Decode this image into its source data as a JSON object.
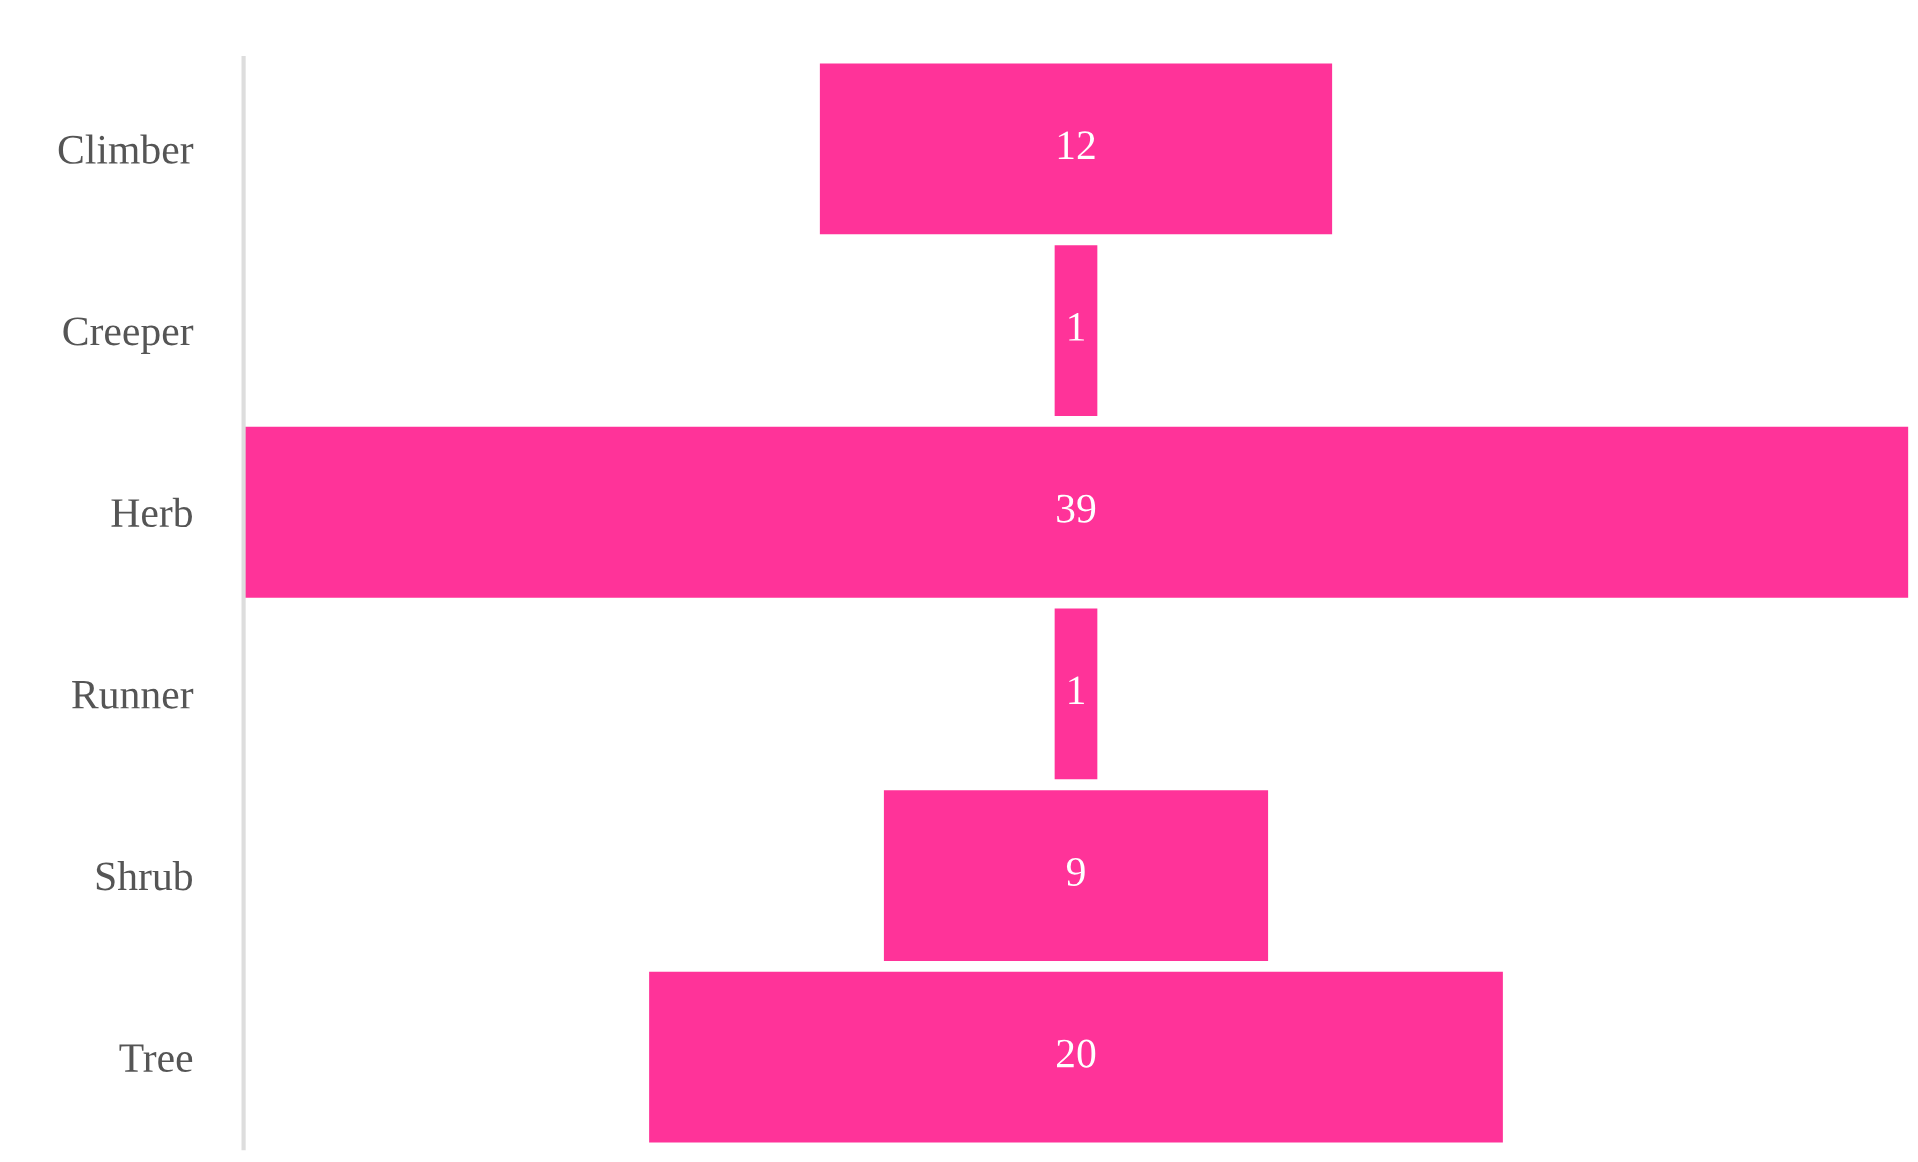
{
  "chart_data": {
    "type": "other",
    "categories": [
      "Climber",
      "Creeper",
      "Herb",
      "Runner",
      "Shrub",
      "Tree"
    ],
    "values": [
      12,
      1,
      39,
      1,
      9,
      20
    ],
    "color": "#ff3399",
    "data_labels": true
  }
}
